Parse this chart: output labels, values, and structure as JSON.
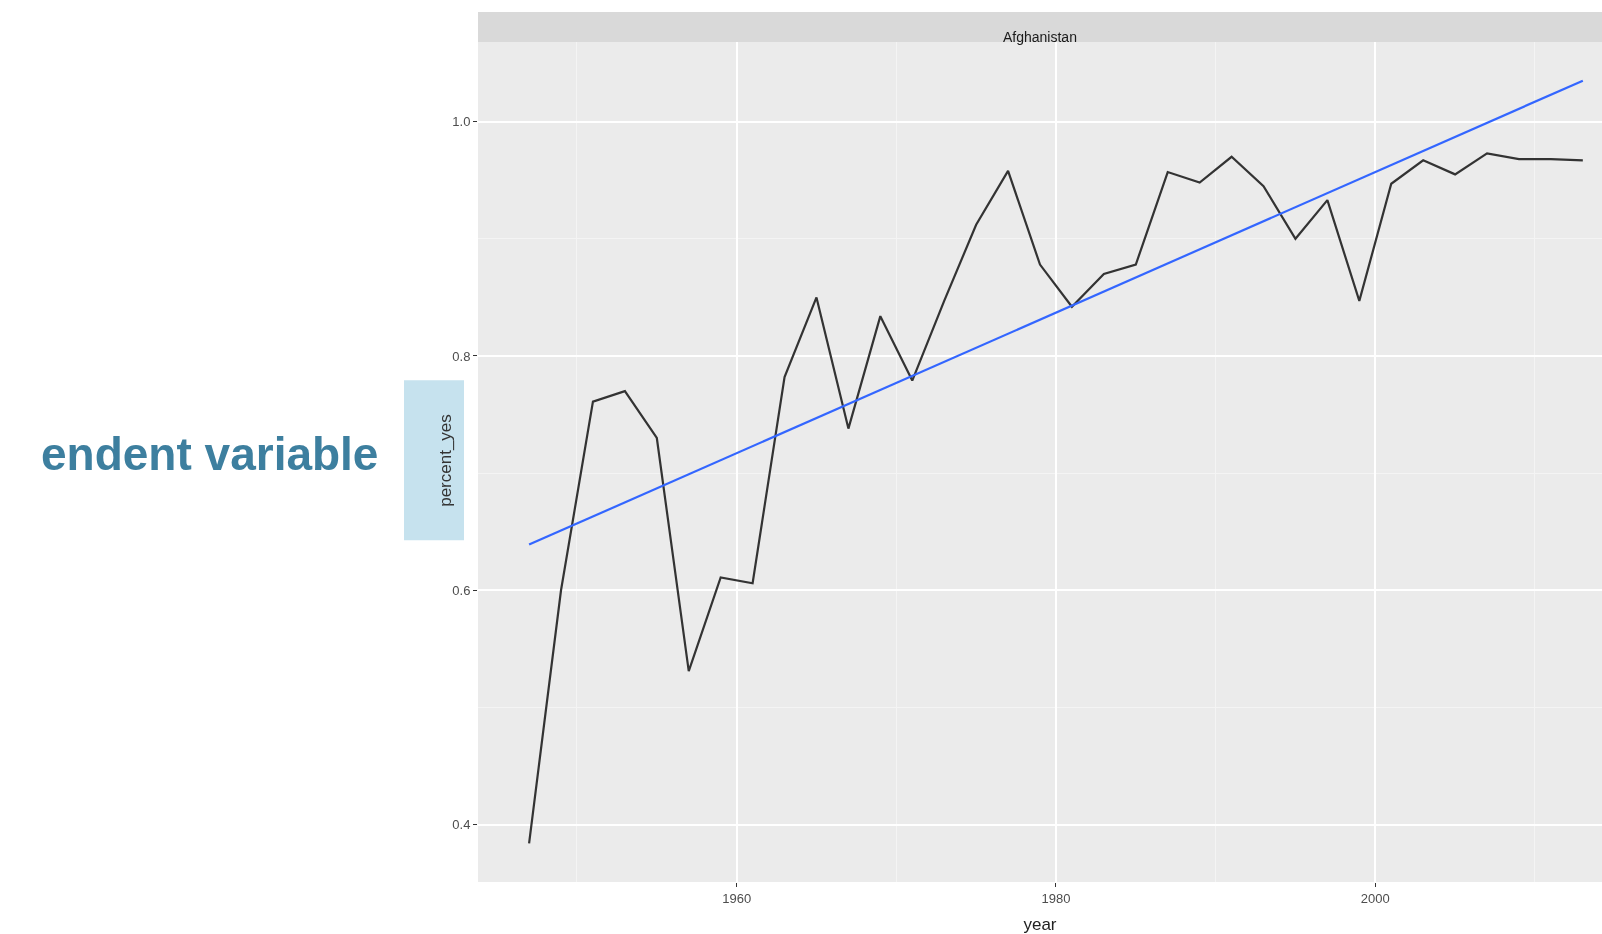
{
  "chart_data": {
    "type": "line",
    "title": "Afghanistan",
    "xlabel": "year",
    "ylabel": "percent_yes",
    "annotations": [
      "endent variable"
    ],
    "series": [
      {
        "color": "#333333",
        "x": [
          1947,
          1949,
          1951,
          1953,
          1955,
          1957,
          1959,
          1961,
          1963,
          1965,
          1967,
          1969,
          1971,
          1973,
          1975,
          1977,
          1979,
          1981,
          1983,
          1985,
          1987,
          1989,
          1991,
          1993,
          1995,
          1997,
          1999,
          2001,
          2003,
          2005,
          2007,
          2009,
          2011,
          2013
        ],
        "values": [
          0.384,
          0.6,
          0.761,
          0.77,
          0.73,
          0.531,
          0.611,
          0.606,
          0.782,
          0.85,
          0.738,
          0.834,
          0.779,
          0.847,
          0.912,
          0.958,
          0.878,
          0.842,
          0.87,
          0.878,
          0.957,
          0.948,
          0.97,
          0.945,
          0.9,
          0.933,
          0.847,
          0.947,
          0.967,
          0.955,
          0.973,
          0.968,
          0.968,
          0.967
        ]
      },
      {
        "type": "line",
        "color": "#3366ff",
        "x": [
          1947,
          2013
        ],
        "values": [
          0.639,
          1.035
        ]
      }
    ],
    "xlim": [
      1943.8,
      2014.2
    ],
    "ylim": [
      0.351,
      1.068
    ],
    "xticks": [
      1960,
      1980,
      2000
    ],
    "yticks": [
      {
        "value": 0.4,
        "label": "0.4"
      },
      {
        "value": 0.6,
        "label": "0.6"
      },
      {
        "value": 0.8,
        "label": "0.8"
      },
      {
        "value": 1.0,
        "label": "1.0"
      }
    ],
    "grid": true,
    "line_style": "solid",
    "marker": "none"
  }
}
